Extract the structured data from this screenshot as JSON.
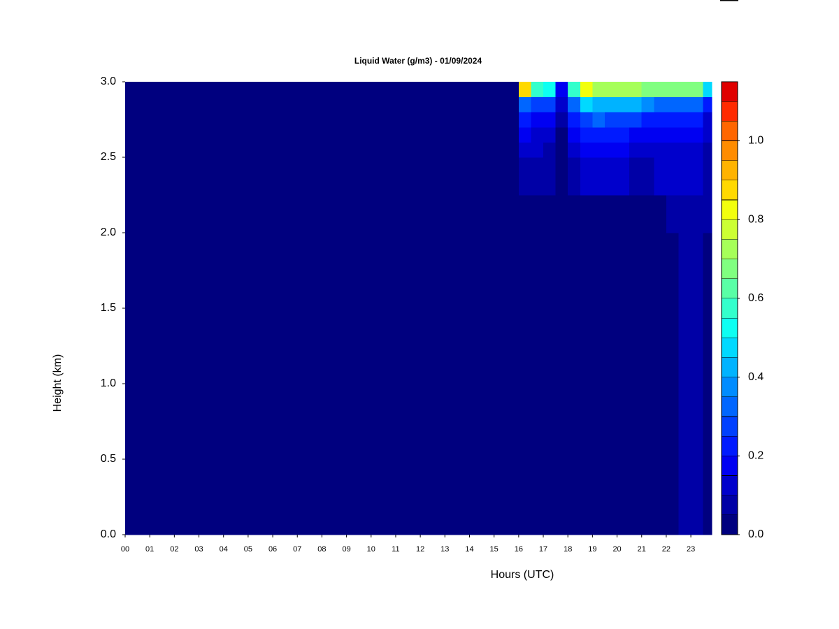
{
  "chart_data": {
    "type": "heatmap",
    "title": "Liquid Water (g/m3) - 01/09/2024",
    "xlabel": "Hours (UTC)",
    "ylabel": "Height (km)",
    "x": [
      0,
      16,
      16.5,
      17,
      17.5,
      18,
      18.5,
      19,
      19.5,
      20,
      20.5,
      21,
      21.5,
      22,
      22.5,
      23,
      23.5,
      23.85
    ],
    "y": [
      0,
      0.5,
      1.0,
      1.5,
      2.0,
      2.25,
      2.5,
      2.6,
      2.7,
      2.8,
      2.9,
      3.0
    ],
    "z": [
      [
        0,
        0,
        0,
        0,
        0,
        0,
        0,
        0,
        0,
        0,
        0,
        0,
        0,
        0,
        0.06,
        0.05,
        0.04
      ],
      [
        0,
        0,
        0,
        0,
        0,
        0,
        0,
        0,
        0,
        0,
        0,
        0,
        0,
        0,
        0.05,
        0.06,
        0.03
      ],
      [
        0,
        0,
        0,
        0,
        0,
        0,
        0,
        0,
        0,
        0,
        0,
        0,
        0,
        0,
        0.05,
        0.06,
        0.03
      ],
      [
        0,
        0,
        0,
        0,
        0,
        0,
        0,
        0,
        0,
        0,
        0,
        0,
        0,
        0.04,
        0.06,
        0.06,
        0.04
      ],
      [
        0,
        0.03,
        0,
        0,
        0,
        0,
        0,
        0.04,
        0.04,
        0.04,
        0.04,
        0.04,
        0.04,
        0.06,
        0.07,
        0.07,
        0.05
      ],
      [
        0,
        0.08,
        0.07,
        0.06,
        0,
        0.06,
        0.1,
        0.11,
        0.1,
        0.1,
        0.09,
        0.09,
        0.1,
        0.1,
        0.11,
        0.1,
        0.07
      ],
      [
        0,
        0.12,
        0.1,
        0.08,
        0.02,
        0.12,
        0.16,
        0.17,
        0.16,
        0.15,
        0.14,
        0.13,
        0.13,
        0.13,
        0.14,
        0.13,
        0.09
      ],
      [
        0,
        0.16,
        0.13,
        0.12,
        0.04,
        0.16,
        0.21,
        0.22,
        0.21,
        0.2,
        0.19,
        0.17,
        0.16,
        0.16,
        0.17,
        0.16,
        0.11
      ],
      [
        0,
        0.22,
        0.18,
        0.16,
        0.06,
        0.22,
        0.29,
        0.3,
        0.29,
        0.27,
        0.26,
        0.23,
        0.22,
        0.22,
        0.23,
        0.22,
        0.14
      ],
      [
        0,
        0.32,
        0.27,
        0.25,
        0.1,
        0.33,
        0.45,
        0.44,
        0.42,
        0.41,
        0.4,
        0.36,
        0.33,
        0.32,
        0.34,
        0.32,
        0.2
      ],
      [
        0,
        0.85,
        0.55,
        0.5,
        0.15,
        0.55,
        0.8,
        0.72,
        0.72,
        0.72,
        0.72,
        0.68,
        0.68,
        0.66,
        0.68,
        0.66,
        0.45
      ]
    ],
    "xlim": [
      0,
      23.85
    ],
    "ylim": [
      0,
      3.0
    ],
    "xticks": [
      {
        "value": 0,
        "label": "00"
      },
      {
        "value": 1,
        "label": "01"
      },
      {
        "value": 2,
        "label": "02"
      },
      {
        "value": 3,
        "label": "03"
      },
      {
        "value": 4,
        "label": "04"
      },
      {
        "value": 5,
        "label": "05"
      },
      {
        "value": 6,
        "label": "06"
      },
      {
        "value": 7,
        "label": "07"
      },
      {
        "value": 8,
        "label": "08"
      },
      {
        "value": 9,
        "label": "09"
      },
      10,
      11,
      12,
      13,
      14,
      15,
      16,
      17,
      18,
      19,
      20,
      21,
      22,
      23
    ],
    "yticks": [
      {
        "value": 0,
        "label": "0.0"
      },
      0.5,
      {
        "value": 1,
        "label": "1.0"
      },
      1.5,
      {
        "value": 2,
        "label": "2.0"
      },
      2.5,
      {
        "value": 3,
        "label": "3.0"
      }
    ],
    "colorbar": {
      "levels": [
        0,
        0.05,
        0.1,
        0.15,
        0.2,
        0.25,
        0.3,
        0.35,
        0.4,
        0.45,
        0.5,
        0.55,
        0.6,
        0.65,
        0.7,
        0.75,
        0.8,
        0.85,
        0.9,
        0.95,
        1.0,
        1.05,
        1.1,
        1.15
      ],
      "colors": [
        "#00007f",
        "#0000a6",
        "#0000cc",
        "#0000f2",
        "#001aff",
        "#0040ff",
        "#0066ff",
        "#008cff",
        "#00b3ff",
        "#00d9ff",
        "#0dfff2",
        "#33ffcc",
        "#59ffa6",
        "#80ff80",
        "#a6ff59",
        "#ccff33",
        "#f2ff0d",
        "#ffd900",
        "#ffb300",
        "#ff8c00",
        "#ff6600",
        "#ff2a00",
        "#e00000"
      ],
      "ticks": [
        {
          "value": 0,
          "label": "0.0"
        },
        0.2,
        0.4,
        0.6,
        0.8,
        {
          "value": 1,
          "label": "1.0"
        }
      ]
    }
  }
}
